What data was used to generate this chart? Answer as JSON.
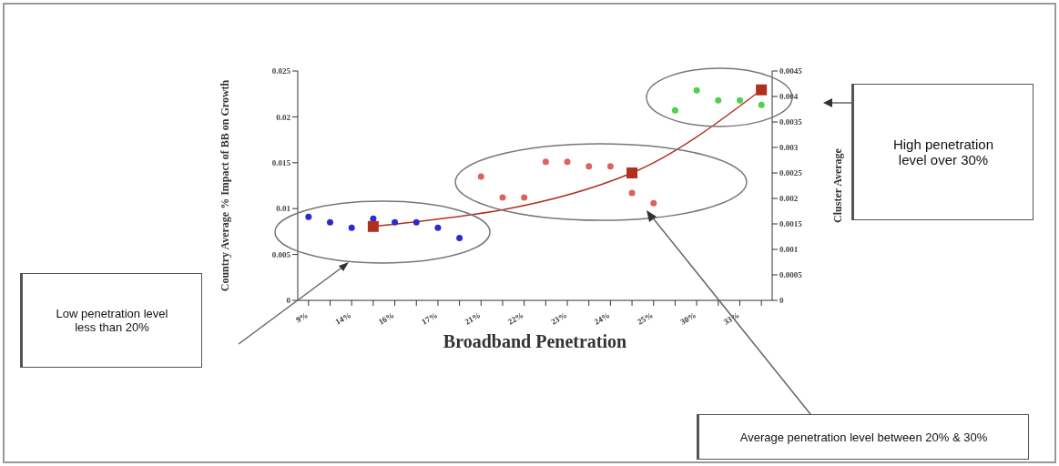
{
  "chart_data": {
    "type": "scatter",
    "xlabel": "Broadband Penetration",
    "ylabel": "Country Average % Impact of BB on Growth",
    "y2label": "Cluster Average",
    "marker": "circle",
    "categories": [
      "9%",
      null,
      "14%",
      null,
      "16%",
      null,
      "17%",
      null,
      "21%",
      null,
      "22%",
      null,
      "23%",
      null,
      "24%",
      null,
      "25%",
      null,
      "30%",
      null,
      "33%",
      null
    ],
    "ylim": [
      0,
      0.025
    ],
    "yticks": [
      0,
      0.005,
      0.01,
      0.015,
      0.02,
      0.025
    ],
    "y2lim": [
      0,
      0.0045
    ],
    "y2ticks": [
      0,
      0.0005,
      0.001,
      0.0015,
      0.002,
      0.0025,
      0.003,
      0.0035,
      0.004,
      0.0045
    ],
    "series": [
      {
        "color": "#2b2bd0",
        "values": [
          0.0091,
          0.0085,
          0.0079,
          0.0089,
          0.0085,
          0.0085,
          0.0079,
          0.0068,
          null,
          null,
          null,
          null,
          null,
          null,
          null,
          null,
          null,
          null,
          null,
          null,
          null,
          null
        ]
      },
      {
        "color": "#e06060",
        "values": [
          null,
          null,
          null,
          null,
          null,
          null,
          null,
          null,
          0.0135,
          0.0112,
          0.0112,
          0.0151,
          0.0151,
          0.0146,
          0.0146,
          0.0117,
          0.0106,
          null,
          null,
          null,
          null,
          null
        ]
      },
      {
        "color": "#50d050",
        "values": [
          null,
          null,
          null,
          null,
          null,
          null,
          null,
          null,
          null,
          null,
          null,
          null,
          null,
          null,
          null,
          null,
          null,
          0.0207,
          0.0229,
          0.0218,
          0.0218,
          0.0213
        ]
      },
      {
        "type": "line",
        "axis": "y2",
        "marker": "square",
        "color": "#b03020",
        "values": [
          null,
          null,
          null,
          0.00145,
          null,
          null,
          null,
          null,
          null,
          null,
          null,
          null,
          null,
          null,
          null,
          0.0025,
          null,
          null,
          null,
          null,
          null,
          0.00413
        ]
      }
    ],
    "annotations": [
      "Low penetration level less than 20%",
      "Average penetration level between 20% & 30%",
      "High penetration level over 30%"
    ]
  }
}
